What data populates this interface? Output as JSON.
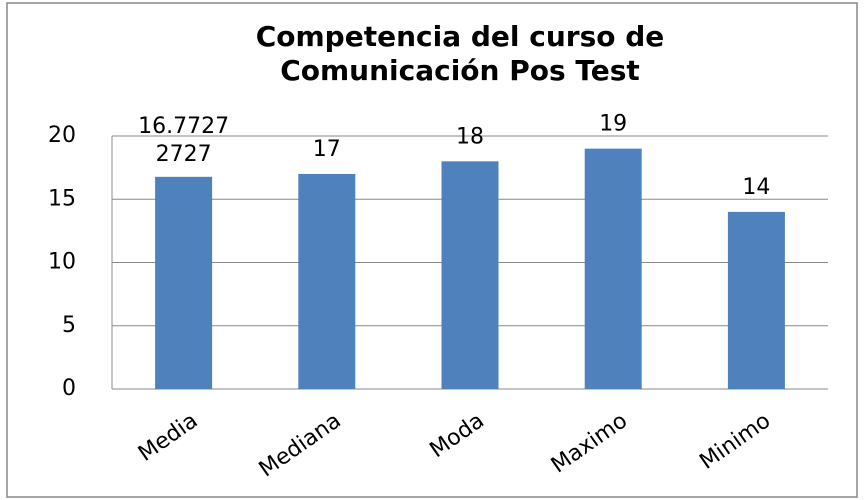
{
  "chart_data": {
    "type": "bar",
    "title": [
      "Competencia del curso de",
      "Comunicación  Pos Test"
    ],
    "categories": [
      "Media",
      "Mediana",
      "Moda",
      "Maximo",
      "Minimo"
    ],
    "values": [
      16.77272727,
      17,
      18,
      19,
      14
    ],
    "value_labels": [
      "16.77272727",
      "17",
      "18",
      "19",
      "14"
    ],
    "color": "#4f81bd",
    "ylim": [
      0,
      20
    ],
    "yticks": [
      0,
      5,
      10,
      15,
      20
    ],
    "grid": true
  }
}
